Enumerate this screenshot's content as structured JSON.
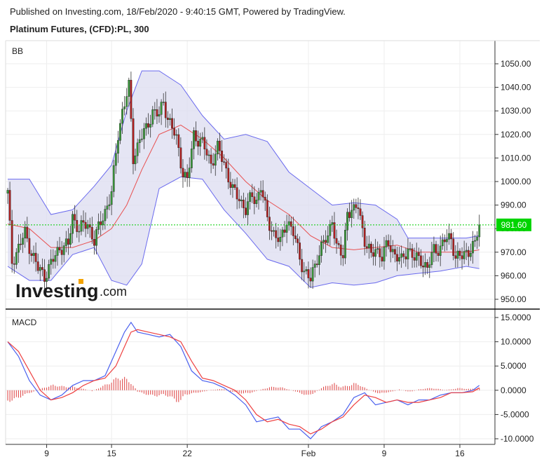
{
  "header": {
    "published": "Published on Investing.com, 18/Feb/2020 - 9:40:15 GMT, Powered by TradingView.",
    "symbol": "Platinum Futures, (CFD):PL, 300"
  },
  "logo": {
    "brand": "Investing",
    "suffix": ".com"
  },
  "colors": {
    "bull": "#3a9a3a",
    "bear": "#b21f1f",
    "band_fill": "#dcdcf0",
    "band_line": "#6a6aee",
    "basis": "#e85050",
    "macd": "#4a60ee",
    "signal": "#ee4040",
    "price_line": "#00cc00"
  },
  "chart_data": [
    {
      "type": "candlestick",
      "panel_label": "BB",
      "y_ticks": [
        "1050.00",
        "1040.00",
        "1030.00",
        "1020.00",
        "1010.00",
        "1000.00",
        "990.00",
        "980.00",
        "970.00",
        "960.00",
        "950.00"
      ],
      "y_range": [
        946,
        1058
      ],
      "last_price": "981.60",
      "x_labels": [
        {
          "label": "9",
          "index": 18
        },
        {
          "label": "15",
          "index": 48
        },
        {
          "label": "22",
          "index": 83
        },
        {
          "label": "Feb",
          "index": 139
        },
        {
          "label": "9",
          "index": 174
        },
        {
          "label": "16",
          "index": 209
        }
      ],
      "price_anchors": [
        [
          0,
          995
        ],
        [
          2,
          966
        ],
        [
          5,
          972
        ],
        [
          8,
          978
        ],
        [
          11,
          970
        ],
        [
          14,
          963
        ],
        [
          17,
          960
        ],
        [
          20,
          965
        ],
        [
          24,
          972
        ],
        [
          28,
          973
        ],
        [
          30,
          985
        ],
        [
          33,
          980
        ],
        [
          37,
          982
        ],
        [
          40,
          975
        ],
        [
          44,
          985
        ],
        [
          48,
          995
        ],
        [
          51,
          1020
        ],
        [
          53,
          1030
        ],
        [
          56,
          1040
        ],
        [
          58,
          1010
        ],
        [
          61,
          1018
        ],
        [
          64,
          1022
        ],
        [
          67,
          1030
        ],
        [
          70,
          1028
        ],
        [
          72,
          1034
        ],
        [
          74,
          1027
        ],
        [
          78,
          1018
        ],
        [
          81,
          1004
        ],
        [
          83,
          1000
        ],
        [
          86,
          1020
        ],
        [
          90,
          1016
        ],
        [
          94,
          1008
        ],
        [
          97,
          1014
        ],
        [
          100,
          1008
        ],
        [
          104,
          996
        ],
        [
          107,
          993
        ],
        [
          110,
          988
        ],
        [
          113,
          994
        ],
        [
          115,
          992
        ],
        [
          117,
          998
        ],
        [
          120,
          984
        ],
        [
          123,
          978
        ],
        [
          126,
          974
        ],
        [
          129,
          984
        ],
        [
          132,
          978
        ],
        [
          135,
          968
        ],
        [
          137,
          962
        ],
        [
          140,
          958
        ],
        [
          143,
          968
        ],
        [
          146,
          974
        ],
        [
          148,
          976
        ],
        [
          150,
          985
        ],
        [
          152,
          972
        ],
        [
          155,
          968
        ],
        [
          157,
          988
        ],
        [
          160,
          987
        ],
        [
          162,
          990
        ],
        [
          165,
          975
        ],
        [
          168,
          968
        ],
        [
          170,
          972
        ],
        [
          173,
          968
        ],
        [
          176,
          974
        ],
        [
          179,
          969
        ],
        [
          182,
          966
        ],
        [
          185,
          972
        ],
        [
          188,
          967
        ],
        [
          191,
          967
        ],
        [
          194,
          963
        ],
        [
          197,
          971
        ],
        [
          200,
          972
        ],
        [
          202,
          975
        ],
        [
          205,
          976
        ],
        [
          207,
          968
        ],
        [
          210,
          968
        ],
        [
          213,
          971
        ],
        [
          216,
          973
        ],
        [
          218,
          982
        ]
      ],
      "bb_upper": [
        [
          0,
          1001
        ],
        [
          10,
          1001
        ],
        [
          20,
          986
        ],
        [
          30,
          988
        ],
        [
          40,
          998
        ],
        [
          48,
          1007
        ],
        [
          55,
          1030
        ],
        [
          62,
          1047
        ],
        [
          70,
          1047
        ],
        [
          80,
          1041
        ],
        [
          90,
          1028
        ],
        [
          100,
          1018
        ],
        [
          110,
          1020
        ],
        [
          120,
          1017
        ],
        [
          130,
          1004
        ],
        [
          140,
          997
        ],
        [
          150,
          990
        ],
        [
          160,
          991
        ],
        [
          170,
          990
        ],
        [
          180,
          984
        ],
        [
          185,
          976
        ],
        [
          200,
          976
        ],
        [
          212,
          976
        ],
        [
          218,
          977
        ]
      ],
      "bb_lower": [
        [
          0,
          964
        ],
        [
          10,
          958
        ],
        [
          20,
          958
        ],
        [
          30,
          969
        ],
        [
          40,
          972
        ],
        [
          48,
          958
        ],
        [
          55,
          956
        ],
        [
          62,
          965
        ],
        [
          70,
          997
        ],
        [
          80,
          1002
        ],
        [
          90,
          1001
        ],
        [
          100,
          988
        ],
        [
          110,
          978
        ],
        [
          120,
          967
        ],
        [
          130,
          964
        ],
        [
          140,
          955
        ],
        [
          150,
          957
        ],
        [
          160,
          956
        ],
        [
          170,
          957
        ],
        [
          180,
          960
        ],
        [
          190,
          961
        ],
        [
          200,
          962
        ],
        [
          212,
          964
        ],
        [
          218,
          963
        ]
      ],
      "bb_basis": [
        [
          0,
          982
        ],
        [
          10,
          980
        ],
        [
          20,
          972
        ],
        [
          30,
          972
        ],
        [
          40,
          975
        ],
        [
          48,
          980
        ],
        [
          55,
          990
        ],
        [
          62,
          1005
        ],
        [
          70,
          1020
        ],
        [
          80,
          1024
        ],
        [
          90,
          1018
        ],
        [
          100,
          1010
        ],
        [
          110,
          1000
        ],
        [
          120,
          992
        ],
        [
          130,
          986
        ],
        [
          140,
          977
        ],
        [
          150,
          972
        ],
        [
          160,
          971
        ],
        [
          170,
          972
        ],
        [
          180,
          973
        ],
        [
          190,
          970
        ],
        [
          200,
          970
        ],
        [
          212,
          970
        ],
        [
          218,
          971
        ]
      ]
    },
    {
      "type": "line",
      "panel_label": "MACD",
      "y_ticks": [
        "15.0000",
        "10.0000",
        "5.0000",
        "0.0000",
        "-5.0000",
        "-10.0000"
      ],
      "y_range": [
        -11,
        16
      ],
      "macd": [
        [
          0,
          10
        ],
        [
          5,
          7
        ],
        [
          10,
          2
        ],
        [
          15,
          -1
        ],
        [
          20,
          -2
        ],
        [
          25,
          -1
        ],
        [
          30,
          1
        ],
        [
          35,
          2
        ],
        [
          40,
          2
        ],
        [
          45,
          3
        ],
        [
          50,
          8
        ],
        [
          54,
          12
        ],
        [
          57,
          14
        ],
        [
          60,
          12
        ],
        [
          65,
          11.5
        ],
        [
          70,
          11
        ],
        [
          75,
          11.5
        ],
        [
          80,
          9
        ],
        [
          85,
          4
        ],
        [
          90,
          2
        ],
        [
          95,
          1.5
        ],
        [
          100,
          0.5
        ],
        [
          105,
          -1
        ],
        [
          110,
          -3
        ],
        [
          115,
          -6.5
        ],
        [
          120,
          -6
        ],
        [
          125,
          -5.5
        ],
        [
          130,
          -8
        ],
        [
          135,
          -8
        ],
        [
          140,
          -10
        ],
        [
          145,
          -7.5
        ],
        [
          150,
          -6.5
        ],
        [
          155,
          -5
        ],
        [
          160,
          -1.5
        ],
        [
          165,
          -0.5
        ],
        [
          170,
          -3
        ],
        [
          175,
          -2.5
        ],
        [
          180,
          -2
        ],
        [
          185,
          -3
        ],
        [
          190,
          -2
        ],
        [
          195,
          -2
        ],
        [
          200,
          -1
        ],
        [
          205,
          -0.5
        ],
        [
          210,
          -0.5
        ],
        [
          215,
          0
        ],
        [
          218,
          1
        ]
      ],
      "signal": [
        [
          0,
          10
        ],
        [
          5,
          8
        ],
        [
          10,
          4
        ],
        [
          15,
          0
        ],
        [
          20,
          -2
        ],
        [
          25,
          -1.5
        ],
        [
          30,
          -0.5
        ],
        [
          35,
          1
        ],
        [
          40,
          2
        ],
        [
          45,
          2.5
        ],
        [
          50,
          5
        ],
        [
          54,
          9
        ],
        [
          57,
          12
        ],
        [
          60,
          12.5
        ],
        [
          65,
          12
        ],
        [
          70,
          11.5
        ],
        [
          75,
          11
        ],
        [
          80,
          10
        ],
        [
          85,
          6
        ],
        [
          90,
          2.5
        ],
        [
          95,
          2
        ],
        [
          100,
          1
        ],
        [
          105,
          0
        ],
        [
          110,
          -2
        ],
        [
          115,
          -5
        ],
        [
          120,
          -6.5
        ],
        [
          125,
          -6
        ],
        [
          130,
          -7
        ],
        [
          135,
          -7.5
        ],
        [
          140,
          -9
        ],
        [
          145,
          -8
        ],
        [
          150,
          -6.5
        ],
        [
          155,
          -5.5
        ],
        [
          160,
          -3
        ],
        [
          165,
          -1
        ],
        [
          170,
          -1.5
        ],
        [
          175,
          -2.5
        ],
        [
          180,
          -2
        ],
        [
          185,
          -2.5
        ],
        [
          190,
          -2.5
        ],
        [
          195,
          -2
        ],
        [
          200,
          -1.5
        ],
        [
          205,
          -0.5
        ],
        [
          210,
          -0.5
        ],
        [
          215,
          -0.3
        ],
        [
          218,
          0.5
        ]
      ],
      "histogram": [
        [
          0,
          -2.5
        ],
        [
          3,
          -2.2
        ],
        [
          6,
          -1.5
        ],
        [
          9,
          -0.8
        ],
        [
          12,
          -0.3
        ],
        [
          15,
          0.3
        ],
        [
          18,
          0.8
        ],
        [
          21,
          1.2
        ],
        [
          24,
          1
        ],
        [
          27,
          0.8
        ],
        [
          30,
          0.8
        ],
        [
          33,
          0.5
        ],
        [
          36,
          0.2
        ],
        [
          39,
          -0.2
        ],
        [
          42,
          0.5
        ],
        [
          45,
          1.2
        ],
        [
          48,
          2
        ],
        [
          51,
          3
        ],
        [
          54,
          2.8
        ],
        [
          57,
          1.8
        ],
        [
          60,
          -0.3
        ],
        [
          63,
          -0.8
        ],
        [
          66,
          -1.2
        ],
        [
          69,
          -1.3
        ],
        [
          72,
          -1
        ],
        [
          75,
          -1.5
        ],
        [
          78,
          -2.5
        ],
        [
          80,
          -2.5
        ],
        [
          82,
          -1
        ],
        [
          85,
          -0.8
        ],
        [
          88,
          -0.5
        ],
        [
          91,
          -0.3
        ],
        [
          94,
          0.1
        ],
        [
          97,
          0.2
        ],
        [
          100,
          0.3
        ],
        [
          103,
          -0.3
        ],
        [
          106,
          -0.5
        ],
        [
          109,
          -0.8
        ],
        [
          112,
          -0.6
        ],
        [
          115,
          -0.2
        ],
        [
          118,
          0.3
        ],
        [
          121,
          0.7
        ],
        [
          124,
          0.8
        ],
        [
          127,
          0.6
        ],
        [
          130,
          0.2
        ],
        [
          133,
          -0.3
        ],
        [
          136,
          -0.8
        ],
        [
          139,
          -1.3
        ],
        [
          142,
          -0.5
        ],
        [
          145,
          0.5
        ],
        [
          148,
          1.2
        ],
        [
          151,
          1.5
        ],
        [
          154,
          0.8
        ],
        [
          157,
          1
        ],
        [
          160,
          1.6
        ],
        [
          163,
          1.2
        ],
        [
          166,
          0.3
        ],
        [
          169,
          -0.3
        ],
        [
          172,
          -0.8
        ],
        [
          175,
          -0.5
        ],
        [
          178,
          -0.3
        ],
        [
          181,
          0.2
        ],
        [
          184,
          -0.2
        ],
        [
          187,
          -0.3
        ],
        [
          190,
          0.2
        ],
        [
          193,
          0.4
        ],
        [
          196,
          0.5
        ],
        [
          199,
          0.3
        ],
        [
          202,
          0.1
        ],
        [
          205,
          0.2
        ],
        [
          208,
          0.5
        ],
        [
          211,
          0.4
        ],
        [
          214,
          0.3
        ],
        [
          217,
          0.5
        ]
      ]
    }
  ]
}
